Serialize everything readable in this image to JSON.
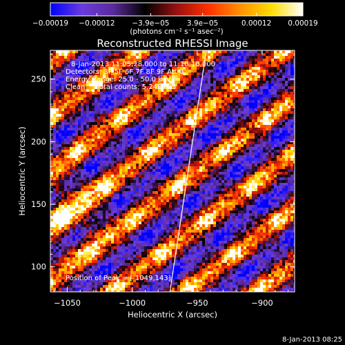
{
  "chart_data": {
    "type": "heatmap",
    "title": "Reconstructed RHESSI Image",
    "xlabel": "Heliocentric X (arcsec)",
    "ylabel": "Heliocentric Y (arcsec)",
    "xlim": [
      -1063,
      -875
    ],
    "ylim": [
      80,
      273
    ],
    "xticks": [
      -1050,
      -1000,
      -950,
      -900
    ],
    "yticks": [
      100,
      150,
      200,
      250
    ],
    "xtick_labels": [
      "−1050",
      "−1000",
      "−950",
      "−900"
    ],
    "ytick_labels": [
      "100",
      "150",
      "200",
      "250"
    ],
    "colorbar": {
      "min": -0.00019,
      "max": 0.00019,
      "tick_values": [
        -0.00019,
        -0.00012,
        -3.9e-05,
        3.9e-05,
        0.00012,
        0.00019
      ],
      "tick_labels": [
        "−0.00019",
        "−0.00012",
        "−3.9e−05",
        "3.9e−05",
        "0.00012",
        "0.00019"
      ],
      "units": "(photons cm⁻² s⁻¹ asec⁻²)",
      "colors": [
        "#0000ff",
        "#6a3cdc",
        "#5a2a9a",
        "#000000",
        "#9a1010",
        "#ff3000",
        "#ff9000",
        "#ffdd00",
        "#ffffff"
      ]
    },
    "annotations": [
      "8-Jan-2013 11:05:28.000 to 11:10:10.000",
      "Detectors: 3F 5F 6F 7F 8F 9F Att 0",
      "Energy Range: 25.0 - 50.0 keV",
      "Clean     Total counts: 5.24E+03"
    ],
    "peak_label": "Position of Peak = [-1049,143]",
    "peak": {
      "x": -1049,
      "y": 143
    },
    "limb_line": [
      {
        "x": -971,
        "y": 80
      },
      {
        "x": -943,
        "y": 273
      }
    ],
    "stripe_slope": 0.78,
    "stripe_period_y": 44,
    "colors": {
      "background": "#000000",
      "foreground": "#ffffff"
    }
  },
  "footer": {
    "date": "8-Jan-2013 08:25"
  }
}
